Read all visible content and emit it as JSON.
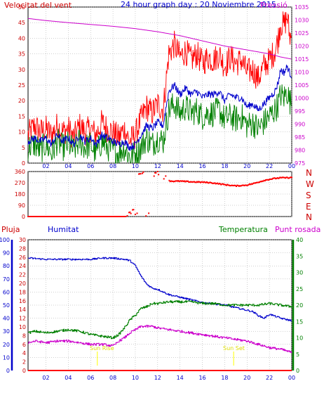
{
  "header": {
    "title_left": "Velocitat del vent",
    "title_center": "24 hour graph day : 20 Noviembre 2015",
    "title_right": "Pressió"
  },
  "colors": {
    "wind_gust": "#ff0000",
    "wind_avg": "#0000cc",
    "wind_low": "#008000",
    "pressure": "#cc00cc",
    "direction": "#ff0000",
    "rain": "#ff0000",
    "humidity": "#0000cc",
    "temperature": "#008000",
    "dewpoint": "#cc00cc",
    "sun_marker": "#ffff00",
    "grid": "#a0a0a0",
    "frame": "#000000"
  },
  "lower_labels": {
    "rain": "Pluja",
    "humidity": "Humitat",
    "temperature": "Temperatura",
    "dewpoint": "Punt rosada",
    "sunrise": "Sun Rise",
    "sunset": "Sun Set"
  },
  "direction_letters": [
    "N",
    "W",
    "S",
    "E",
    "N"
  ],
  "chart_data": [
    {
      "type": "line",
      "ylabel": "Velocitat del vent",
      "ylim": [
        0,
        50
      ],
      "y_ticks": [
        0,
        5,
        10,
        15,
        20,
        25,
        30,
        35,
        40,
        45,
        50
      ],
      "y2label": "Pressió",
      "y2lim": [
        975,
        1035
      ],
      "y2_ticks": [
        975,
        980,
        985,
        990,
        995,
        1000,
        1005,
        1010,
        1015,
        1020,
        1025,
        1030,
        1035
      ],
      "xlim": [
        0.4,
        24
      ],
      "x_ticks": [
        "02",
        "04",
        "06",
        "08",
        "10",
        "12",
        "14",
        "16",
        "18",
        "20",
        "22",
        "00"
      ],
      "grid": true,
      "series": [
        {
          "key": "gust",
          "x": [
            0.4,
            1,
            1.5,
            2,
            2.5,
            3,
            3.5,
            4,
            4.5,
            5,
            5.5,
            6,
            6.5,
            7,
            7.5,
            8,
            8.5,
            9,
            9.5,
            10,
            10.5,
            11,
            11.5,
            12,
            12.5,
            12.8,
            13,
            13.5,
            14,
            14.5,
            15,
            15.5,
            16,
            16.5,
            17,
            17.5,
            18,
            18.5,
            19,
            19.5,
            20,
            20.5,
            21,
            21.5,
            22,
            22.5,
            22.8,
            23,
            23.3,
            23.6,
            23.8,
            24
          ],
          "values": [
            9,
            12,
            10,
            11,
            9,
            12,
            10,
            11,
            8,
            12,
            10,
            11,
            9,
            13,
            11,
            10,
            8,
            11,
            7,
            9,
            14,
            18,
            16,
            19,
            17,
            28,
            35,
            38,
            34,
            36,
            33,
            35,
            32,
            34,
            33,
            35,
            31,
            34,
            32,
            33,
            29,
            30,
            27,
            31,
            33,
            36,
            40,
            45,
            44,
            47,
            41,
            40
          ]
        },
        {
          "key": "avg",
          "x": [
            0.4,
            1,
            1.5,
            2,
            2.5,
            3,
            3.5,
            4,
            4.5,
            5,
            5.5,
            6,
            6.5,
            7,
            7.5,
            8,
            8.5,
            9,
            9.5,
            10,
            10.5,
            11,
            11.5,
            12,
            12.5,
            12.8,
            13,
            13.5,
            14,
            14.5,
            15,
            15.5,
            16,
            16.5,
            17,
            17.5,
            18,
            18.5,
            19,
            19.5,
            20,
            20.5,
            21,
            21.5,
            22,
            22.5,
            22.8,
            23,
            23.3,
            23.6,
            23.8,
            24
          ],
          "values": [
            7,
            8,
            7,
            8,
            6,
            9,
            7,
            8,
            6,
            9,
            7,
            8,
            6,
            9,
            8,
            7,
            6,
            7,
            5,
            6,
            9,
            12,
            11,
            13,
            12,
            19,
            23,
            25,
            22,
            24,
            22,
            23,
            21,
            22,
            22,
            23,
            20,
            22,
            21,
            21,
            18,
            19,
            17,
            19,
            21,
            23,
            26,
            30,
            29,
            31,
            29,
            28
          ]
        },
        {
          "key": "low",
          "x": [
            0.4,
            1,
            1.5,
            2,
            2.5,
            3,
            3.5,
            4,
            4.5,
            5,
            5.5,
            6,
            6.5,
            7,
            7.5,
            8,
            8.5,
            9,
            9.5,
            10,
            10.5,
            11,
            11.5,
            12,
            12.5,
            12.8,
            13,
            13.5,
            14,
            14.5,
            15,
            15.5,
            16,
            16.5,
            17,
            17.5,
            18,
            18.5,
            19,
            19.5,
            20,
            20.5,
            21,
            21.5,
            22,
            22.5,
            22.8,
            23,
            23.3,
            23.6,
            23.8,
            24
          ],
          "values": [
            5,
            6,
            4,
            6,
            3,
            7,
            5,
            6,
            4,
            7,
            5,
            6,
            3,
            7,
            5,
            4,
            3,
            5,
            2,
            3,
            5,
            8,
            6,
            8,
            7,
            13,
            17,
            19,
            16,
            18,
            16,
            17,
            15,
            16,
            16,
            17,
            14,
            15,
            14,
            15,
            12,
            13,
            11,
            13,
            15,
            17,
            19,
            22,
            21,
            23,
            20,
            19
          ]
        },
        {
          "key": "pressure",
          "axis": "y2",
          "x": [
            0.4,
            2,
            4,
            6,
            8,
            10,
            12,
            14,
            16,
            18,
            20,
            22,
            23,
            24
          ],
          "values": [
            1030.6,
            1029.8,
            1029.0,
            1028.3,
            1027.6,
            1026.7,
            1025.5,
            1024.0,
            1022.0,
            1020.0,
            1018.5,
            1017.0,
            1015.8,
            1015.0
          ]
        }
      ]
    },
    {
      "type": "scatter",
      "ylim": [
        0,
        360
      ],
      "y_ticks": [
        0,
        90,
        180,
        270,
        360
      ],
      "xlim": [
        0.4,
        24
      ],
      "series": [
        {
          "key": "direction",
          "x": [
            0.4,
            1,
            1.5,
            2,
            2.5,
            3,
            3.5,
            4,
            4.5,
            5,
            5.5,
            6,
            6.5,
            7,
            7.5,
            8,
            8.5,
            9,
            9.3,
            9.5,
            9.8,
            10.1,
            10.4,
            10.7,
            11,
            11.3,
            11.6,
            11.9,
            12.2,
            12.5,
            12.8,
            13,
            13.5,
            14,
            14.5,
            15,
            15.5,
            16,
            16.5,
            17,
            17.5,
            18,
            18.5,
            19,
            19.5,
            20,
            20.5,
            21,
            21.5,
            22,
            22.5,
            23,
            23.5,
            24
          ],
          "values": [
            0,
            0,
            0,
            0,
            0,
            0,
            0,
            0,
            0,
            0,
            0,
            0,
            0,
            0,
            0,
            0,
            0,
            0,
            0,
            30,
            50,
            20,
            340,
            350,
            10,
            25,
            320,
            355,
            340,
            300,
            330,
            285,
            282,
            283,
            280,
            278,
            276,
            275,
            272,
            268,
            262,
            255,
            250,
            245,
            248,
            252,
            262,
            275,
            288,
            298,
            305,
            310,
            310,
            312
          ]
        }
      ]
    },
    {
      "type": "line",
      "ylabel": "Humitat",
      "ylim": [
        0,
        100
      ],
      "y_ticks": [
        0,
        10,
        20,
        30,
        40,
        50,
        60,
        70,
        80,
        90,
        100
      ],
      "y_rain_label": "Pluja",
      "y_rain_lim": [
        0,
        30
      ],
      "y_rain_ticks": [
        0,
        2,
        4,
        6,
        8,
        10,
        12,
        14,
        16,
        18,
        20,
        22,
        24,
        26,
        28,
        30
      ],
      "y2label": "Temperatura",
      "y2lim": [
        0,
        40
      ],
      "y2_ticks": [
        0,
        5,
        10,
        15,
        20,
        25,
        30,
        35,
        40
      ],
      "xlim": [
        0.4,
        24
      ],
      "x_ticks": [
        "02",
        "04",
        "06",
        "08",
        "10",
        "12",
        "14",
        "16",
        "18",
        "20",
        "22",
        "00"
      ],
      "grid": true,
      "series": [
        {
          "key": "rain",
          "axis": "rain",
          "x": [
            0.4,
            24
          ],
          "values": [
            0,
            0
          ]
        },
        {
          "key": "humidity",
          "x": [
            0.4,
            2,
            4,
            6,
            7,
            8,
            9,
            9.5,
            10,
            10.5,
            11,
            11.5,
            12,
            12.5,
            13,
            14,
            15,
            16,
            17,
            18,
            19,
            20,
            20.5,
            21,
            21.5,
            22,
            23,
            24
          ],
          "values": [
            86,
            85,
            85,
            85,
            86,
            86,
            85,
            84,
            80,
            72,
            66,
            63,
            62,
            60,
            58,
            56,
            54,
            52,
            51,
            50,
            48,
            46,
            45,
            42,
            40,
            43,
            40,
            38
          ]
        },
        {
          "key": "temperature",
          "axis": "y2",
          "x": [
            0.4,
            1,
            2,
            3,
            4,
            5,
            6,
            7,
            8,
            8.5,
            9,
            9.5,
            10,
            10.5,
            11,
            11.5,
            12,
            13,
            14,
            15,
            16,
            17,
            18,
            19,
            20,
            21,
            22,
            23,
            24
          ],
          "values": [
            11.5,
            12,
            11.5,
            12,
            12.5,
            12,
            11,
            10.5,
            10,
            11,
            13,
            15.5,
            17,
            19,
            19.5,
            20.5,
            20.5,
            21,
            21,
            21,
            20.5,
            20.5,
            20,
            20,
            20,
            20,
            20.5,
            20,
            19.5
          ]
        },
        {
          "key": "dewpoint",
          "axis": "y2",
          "x": [
            0.4,
            1,
            2,
            3,
            4,
            5,
            6,
            7,
            8,
            8.5,
            9,
            9.5,
            10,
            10.5,
            11,
            11.5,
            12,
            13,
            14,
            15,
            16,
            17,
            18,
            19,
            20,
            21,
            22,
            23,
            24
          ],
          "values": [
            8.5,
            9,
            8.5,
            9,
            9,
            8.5,
            8,
            8,
            7.5,
            9,
            10,
            11.5,
            12.5,
            13.5,
            13.5,
            13.5,
            13,
            12.5,
            12,
            11.5,
            11,
            10.5,
            10,
            9.5,
            9,
            8,
            7,
            6.5,
            5.5
          ]
        }
      ],
      "annotations": [
        {
          "text": "Sun Rise",
          "x": 6.6
        },
        {
          "text": "Sun Set",
          "x": 18.8
        }
      ]
    }
  ]
}
